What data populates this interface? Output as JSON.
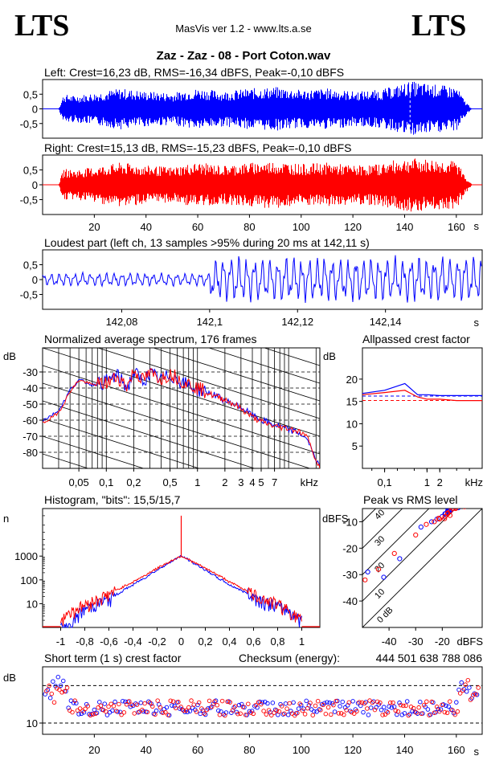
{
  "header": {
    "logo_left": "LTS",
    "logo_right": "LTS",
    "app_title": "MasVis ver 1.2 - www.lts.a.se",
    "track_title": "Zaz - Zaz - 08 - Port Coton.wav"
  },
  "colors": {
    "left": "#0000ff",
    "right": "#ff0000",
    "axes": "#000000",
    "grid": "#000000"
  },
  "chart_data": [
    {
      "id": "left_waveform",
      "type": "area",
      "title": "Left: Crest=16,23 dB, RMS=-16,34 dBFS, Peak=-0,10 dBFS",
      "ylim": [
        -1,
        1
      ],
      "xlim": [
        0,
        170
      ],
      "y_ticks": [
        "0,5",
        "0",
        "-0,5"
      ],
      "y_tick_values": [
        0.5,
        0,
        -0.5
      ],
      "envelope_x": [
        0,
        6,
        8,
        12,
        20,
        30,
        40,
        50,
        56,
        60,
        70,
        80,
        90,
        100,
        110,
        120,
        130,
        137,
        142,
        150,
        160,
        163,
        166,
        170
      ],
      "envelope_y": [
        0,
        0,
        0.5,
        0.45,
        0.55,
        0.7,
        0.6,
        0.55,
        0.65,
        0.7,
        0.6,
        0.7,
        0.75,
        0.65,
        0.7,
        0.6,
        0.65,
        0.8,
        0.95,
        0.85,
        0.75,
        0.3,
        0,
        0
      ],
      "marker_x": 142.11
    },
    {
      "id": "right_waveform",
      "type": "area",
      "title": "Right: Crest=15,13 dB, RMS=-15,23 dBFS, Peak=-0,10 dBFS",
      "ylim": [
        -1,
        1
      ],
      "xlim": [
        0,
        170
      ],
      "y_ticks": [
        "0,5",
        "0",
        "-0,5"
      ],
      "y_tick_values": [
        0.5,
        0,
        -0.5
      ],
      "x_ticks": [
        "20",
        "40",
        "60",
        "80",
        "100",
        "120",
        "140",
        "160"
      ],
      "x_tick_values": [
        20,
        40,
        60,
        80,
        100,
        120,
        140,
        160
      ],
      "x_unit": "s",
      "envelope_x": [
        0,
        6,
        8,
        12,
        20,
        30,
        40,
        50,
        56,
        60,
        70,
        80,
        90,
        100,
        110,
        120,
        130,
        137,
        142,
        150,
        160,
        163,
        166,
        170
      ],
      "envelope_y": [
        0,
        0,
        0.55,
        0.5,
        0.6,
        0.75,
        0.65,
        0.6,
        0.7,
        0.75,
        0.65,
        0.75,
        0.8,
        0.7,
        0.75,
        0.65,
        0.7,
        0.85,
        0.9,
        0.85,
        0.8,
        0.35,
        0,
        0
      ]
    },
    {
      "id": "loudest_part",
      "type": "line",
      "title": "Loudest part (left  ch, 13 samples >95% during 20 ms at 142,11 s)",
      "xlim": [
        142.062,
        142.162
      ],
      "ylim": [
        -1,
        1
      ],
      "y_ticks": [
        "0,5",
        "0",
        "-0,5"
      ],
      "y_tick_values": [
        0.5,
        0,
        -0.5
      ],
      "x_ticks": [
        "142,08",
        "142,1",
        "142,12",
        "142,14"
      ],
      "x_tick_values": [
        142.08,
        142.1,
        142.12,
        142.14
      ],
      "x_unit": "s",
      "amplitude_before_142_1": 0.25,
      "amplitude_after_142_1": 0.85
    },
    {
      "id": "avg_spectrum",
      "type": "line",
      "title": "Normalized average spectrum, 176 frames",
      "ylabel": "dB",
      "ylim": [
        -90,
        -15
      ],
      "x_scale": "log",
      "xlim_khz": [
        0.02,
        22
      ],
      "y_ticks": [
        "-30",
        "-40",
        "-50",
        "-60",
        "-70",
        "-80"
      ],
      "y_tick_values": [
        -30,
        -40,
        -50,
        -60,
        -70,
        -80
      ],
      "x_ticks": [
        "0,05",
        "0,1",
        "0,2",
        "0,5",
        "1",
        "2",
        "3",
        "4",
        "5",
        "7"
      ],
      "x_tick_values": [
        0.05,
        0.1,
        0.2,
        0.5,
        1,
        2,
        3,
        4,
        5,
        7
      ],
      "x_unit": "kHz",
      "series": [
        {
          "name": "",
          "color": "left",
          "f_khz": [
            0.02,
            0.03,
            0.04,
            0.05,
            0.07,
            0.1,
            0.13,
            0.17,
            0.2,
            0.25,
            0.3,
            0.4,
            0.5,
            0.7,
            1,
            1.5,
            2,
            3,
            4,
            5,
            7,
            10,
            13,
            16,
            20,
            22
          ],
          "db": [
            -60,
            -54,
            -41,
            -35,
            -38,
            -36,
            -32,
            -40,
            -30,
            -36,
            -31,
            -35,
            -32,
            -37,
            -41,
            -44,
            -48,
            -52,
            -57,
            -60,
            -63,
            -66,
            -68,
            -72,
            -85,
            -88
          ]
        },
        {
          "name": "",
          "color": "right",
          "f_khz": [
            0.02,
            0.03,
            0.04,
            0.05,
            0.07,
            0.1,
            0.13,
            0.17,
            0.2,
            0.25,
            0.3,
            0.4,
            0.5,
            0.7,
            1,
            1.5,
            2,
            3,
            4,
            5,
            7,
            10,
            13,
            16,
            20,
            22
          ],
          "db": [
            -62,
            -55,
            -42,
            -35,
            -38,
            -37,
            -33,
            -39,
            -29,
            -35,
            -31,
            -34,
            -31,
            -36,
            -40,
            -45,
            -47,
            -53,
            -58,
            -61,
            -64,
            -65,
            -67,
            -70,
            -86,
            -89
          ]
        }
      ]
    },
    {
      "id": "allpassed_crest",
      "type": "line",
      "title": "Allpassed crest factor",
      "ylabel": "dB",
      "ylim": [
        0,
        27
      ],
      "x_scale": "log",
      "xlim_khz": [
        0.03,
        20
      ],
      "y_ticks": [
        "20",
        "15",
        "10",
        "5"
      ],
      "y_tick_values": [
        20,
        15,
        10,
        5
      ],
      "x_ticks": [
        "0,1",
        "1",
        "2"
      ],
      "x_tick_values": [
        0.1,
        1,
        2
      ],
      "x_unit": "kHz",
      "series": [
        {
          "name": "",
          "color": "left",
          "f_khz": [
            0.03,
            0.1,
            0.3,
            0.6,
            1,
            2,
            5,
            20
          ],
          "db": [
            16.8,
            17.5,
            19,
            16.5,
            16.5,
            16.3,
            16.3,
            16.3
          ]
        },
        {
          "name": "",
          "color": "right",
          "f_khz": [
            0.03,
            0.1,
            0.3,
            0.6,
            1,
            2,
            5,
            20
          ],
          "db": [
            16.5,
            17,
            17.5,
            16,
            15.5,
            15.5,
            15.2,
            15.2
          ]
        }
      ],
      "ref_lines": [
        {
          "color": "left",
          "db": 16.2
        },
        {
          "color": "right",
          "db": 15.2
        }
      ]
    },
    {
      "id": "histogram",
      "type": "line",
      "title": "Histogram, \"bits\": 15,5/15,7",
      "ylabel": "n",
      "y_scale": "log",
      "ylim": [
        1,
        100000
      ],
      "xlim": [
        -1.15,
        1.15
      ],
      "y_ticks": [
        "1000",
        "100",
        "10"
      ],
      "y_tick_values": [
        1000,
        100,
        10
      ],
      "x_ticks": [
        "-1",
        "-0,8",
        "-0,6",
        "-0,4",
        "-0,2",
        "0",
        "0,2",
        "0,4",
        "0,6",
        "0,8",
        "1"
      ],
      "x_tick_values": [
        -1,
        -0.8,
        -0.6,
        -0.4,
        -0.2,
        0,
        0.2,
        0.4,
        0.6,
        0.8,
        1
      ],
      "series": [
        {
          "name": "",
          "color": "left",
          "x": [
            -1,
            -0.95,
            -0.9,
            -0.8,
            -0.7,
            -0.6,
            -0.5,
            -0.4,
            -0.3,
            -0.2,
            -0.1,
            0,
            0.1,
            0.2,
            0.3,
            0.4,
            0.5,
            0.6,
            0.7,
            0.8,
            0.9,
            0.95,
            1
          ],
          "n": [
            1,
            1,
            1.5,
            6,
            10,
            15,
            30,
            60,
            120,
            250,
            500,
            1000,
            500,
            250,
            120,
            60,
            35,
            20,
            12,
            8,
            5,
            3,
            2
          ]
        },
        {
          "name": "",
          "color": "right",
          "x": [
            -1,
            -0.95,
            -0.9,
            -0.8,
            -0.7,
            -0.6,
            -0.5,
            -0.4,
            -0.3,
            -0.2,
            -0.1,
            0,
            0.1,
            0.2,
            0.3,
            0.4,
            0.5,
            0.6,
            0.7,
            0.8,
            0.9,
            0.95,
            1
          ],
          "n": [
            2,
            4,
            5,
            9,
            15,
            25,
            45,
            80,
            150,
            300,
            550,
            1000,
            550,
            300,
            160,
            80,
            45,
            25,
            15,
            10,
            5,
            3,
            2
          ]
        }
      ],
      "center_spike_n": 50000
    },
    {
      "id": "peak_vs_rms",
      "type": "scatter",
      "title": "Peak vs RMS level",
      "ylabel": "dBFS",
      "xlabel": "dBFS",
      "xlim": [
        -50,
        -5
      ],
      "ylim": [
        -50,
        -5
      ],
      "y_ticks": [
        "-10",
        "-20",
        "-30",
        "-40"
      ],
      "y_tick_values": [
        -10,
        -20,
        -30,
        -40
      ],
      "x_ticks": [
        "-40",
        "-30",
        "-20"
      ],
      "x_tick_values": [
        -40,
        -30,
        -20
      ],
      "crest_lines_db": [
        0,
        10,
        20,
        30,
        40
      ],
      "crest_labels": [
        "40",
        "30",
        "20",
        "10",
        "0 dB"
      ],
      "series": [
        {
          "name": "",
          "color": "left",
          "x": [
            -48,
            -42,
            -36,
            -28,
            -24,
            -22,
            -20,
            -19,
            -18,
            -17,
            -16,
            -15,
            -14,
            -13,
            -12,
            -11
          ],
          "y": [
            -29,
            -31,
            -24,
            -12,
            -10,
            -9,
            -8,
            -7,
            -6,
            -6,
            -5,
            -4,
            -4,
            -3,
            -2,
            -1
          ]
        },
        {
          "name": "",
          "color": "right",
          "x": [
            -49,
            -44,
            -38,
            -30,
            -26,
            -23,
            -21,
            -19,
            -18,
            -17,
            -16,
            -15,
            -14,
            -13,
            -12,
            -11
          ],
          "y": [
            -32,
            -28,
            -22,
            -15,
            -11,
            -10,
            -9,
            -8,
            -7,
            -6,
            -5,
            -5,
            -4,
            -3,
            -2,
            -1
          ]
        }
      ]
    },
    {
      "id": "short_term_crest",
      "type": "scatter",
      "title": "Short term (1 s) crest factor",
      "checksum_label": "Checksum (energy):",
      "checksum_value": "444 501 638 788 086",
      "ylabel": "dB",
      "xlim": [
        0,
        170
      ],
      "ylim": [
        7,
        25
      ],
      "y_ticks": [
        "10"
      ],
      "y_tick_values": [
        10
      ],
      "ref_lines_db": [
        20,
        10
      ],
      "x_ticks": [
        "20",
        "40",
        "60",
        "80",
        "100",
        "120",
        "140",
        "160"
      ],
      "x_tick_values": [
        20,
        40,
        60,
        80,
        100,
        120,
        140,
        160
      ],
      "x_unit": "s",
      "typical_db": 14,
      "spread_db": 2
    }
  ]
}
